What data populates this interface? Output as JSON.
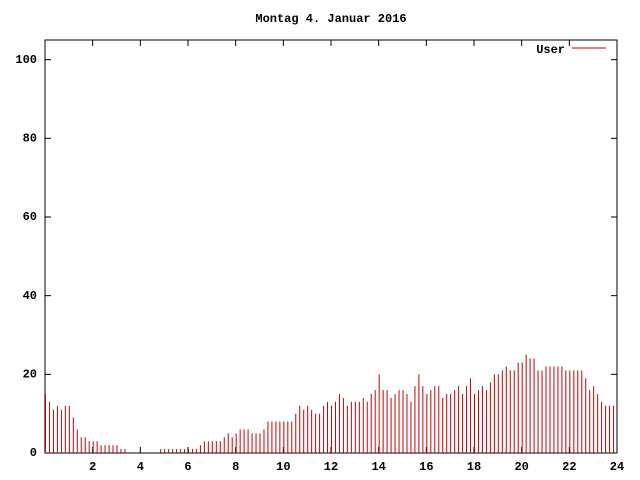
{
  "chart_data": {
    "type": "impulse",
    "title": "Montag 4. Januar 2016",
    "series": [
      {
        "name": "User",
        "color": "#cc0000",
        "x": [
          0,
          0.167,
          0.333,
          0.5,
          0.667,
          0.833,
          1,
          1.167,
          1.333,
          1.5,
          1.667,
          1.833,
          2,
          2.167,
          2.333,
          2.5,
          2.667,
          2.833,
          3,
          3.167,
          3.333,
          3.5,
          3.667,
          3.833,
          4,
          4.167,
          4.333,
          4.5,
          4.667,
          4.833,
          5,
          5.167,
          5.333,
          5.5,
          5.667,
          5.833,
          6,
          6.167,
          6.333,
          6.5,
          6.667,
          6.833,
          7,
          7.167,
          7.333,
          7.5,
          7.667,
          7.833,
          8,
          8.167,
          8.333,
          8.5,
          8.667,
          8.833,
          9,
          9.167,
          9.333,
          9.5,
          9.667,
          9.833,
          10,
          10.167,
          10.333,
          10.5,
          10.667,
          10.833,
          11,
          11.167,
          11.333,
          11.5,
          11.667,
          11.833,
          12,
          12.167,
          12.333,
          12.5,
          12.667,
          12.833,
          13,
          13.167,
          13.333,
          13.5,
          13.667,
          13.833,
          14,
          14.167,
          14.333,
          14.5,
          14.667,
          14.833,
          15,
          15.167,
          15.333,
          15.5,
          15.667,
          15.833,
          16,
          16.167,
          16.333,
          16.5,
          16.667,
          16.833,
          17,
          17.167,
          17.333,
          17.5,
          17.667,
          17.833,
          18,
          18.167,
          18.333,
          18.5,
          18.667,
          18.833,
          19,
          19.167,
          19.333,
          19.5,
          19.667,
          19.833,
          20,
          20.167,
          20.333,
          20.5,
          20.667,
          20.833,
          21,
          21.167,
          21.333,
          21.5,
          21.667,
          21.833,
          22,
          22.167,
          22.333,
          22.5,
          22.667,
          22.833,
          23,
          23.167,
          23.333,
          23.5,
          23.667,
          23.833
        ],
        "values": [
          15,
          13,
          11,
          12,
          11,
          12,
          12,
          9,
          6,
          4,
          4,
          3,
          3,
          3,
          2,
          2,
          2,
          2,
          2,
          1,
          1,
          0,
          0,
          0,
          0,
          0,
          0,
          0,
          0,
          1,
          1,
          1,
          1,
          1,
          1,
          1,
          1,
          1,
          1,
          2,
          3,
          3,
          3,
          3,
          3,
          4,
          5,
          4,
          5,
          6,
          6,
          6,
          5,
          5,
          5,
          6,
          8,
          8,
          8,
          8,
          8,
          8,
          8,
          10,
          12,
          11,
          12,
          11,
          10,
          10,
          12,
          13,
          12,
          13,
          15,
          14,
          12,
          13,
          13,
          13,
          14,
          13,
          15,
          16,
          20,
          16,
          16,
          14,
          15,
          16,
          16,
          15,
          13,
          17,
          20,
          17,
          15,
          16,
          17,
          17,
          14,
          15,
          15,
          16,
          17,
          15,
          17,
          19,
          15,
          16,
          17,
          16,
          18,
          20,
          20,
          21,
          22,
          21,
          21,
          23,
          23,
          25,
          24,
          24,
          21,
          21,
          22,
          22,
          22,
          22,
          22,
          21,
          21,
          21,
          21,
          21,
          19,
          16,
          17,
          15,
          13,
          12,
          12,
          12
        ]
      }
    ],
    "xlim": [
      0,
      24
    ],
    "xticks": [
      2,
      4,
      6,
      8,
      10,
      12,
      14,
      16,
      18,
      20,
      22,
      24
    ],
    "ylim": [
      0,
      105
    ],
    "yticks": [
      0,
      20,
      40,
      60,
      80,
      100
    ]
  }
}
